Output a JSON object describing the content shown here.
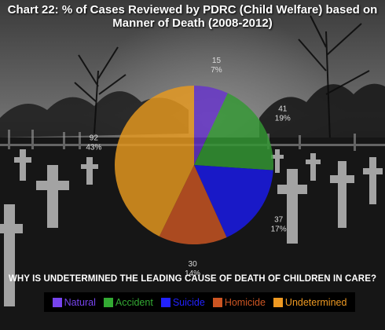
{
  "chart_data": {
    "type": "pie",
    "title": "Chart 22: % of Cases Reviewed by PDRC (Child Welfare) based on Manner of Death (2008-2012)",
    "title_lines": [
      "Chart 22: % of Cases Reviewed by PDRC (Child Welfare) based on",
      "Manner of Death (2008-2012)"
    ],
    "categories": [
      "Natural",
      "Accident",
      "Suicide",
      "Homicide",
      "Undetermined"
    ],
    "values": [
      15,
      41,
      37,
      30,
      92
    ],
    "percent_labels": [
      "7%",
      "19%",
      "17%",
      "14%",
      "43%"
    ],
    "colors": [
      "#6633cc",
      "#339933",
      "#1a1aee",
      "#cc5522",
      "#e89a1e"
    ],
    "legend_colors": [
      "#7744ee",
      "#33aa33",
      "#2222ff",
      "#cc5522",
      "#ee9922"
    ],
    "legend_position": "bottom"
  },
  "question": "WHY IS UNDETERMINED THE LEADING CAUSE OF DEATH OF CHILDREN IN CARE?"
}
